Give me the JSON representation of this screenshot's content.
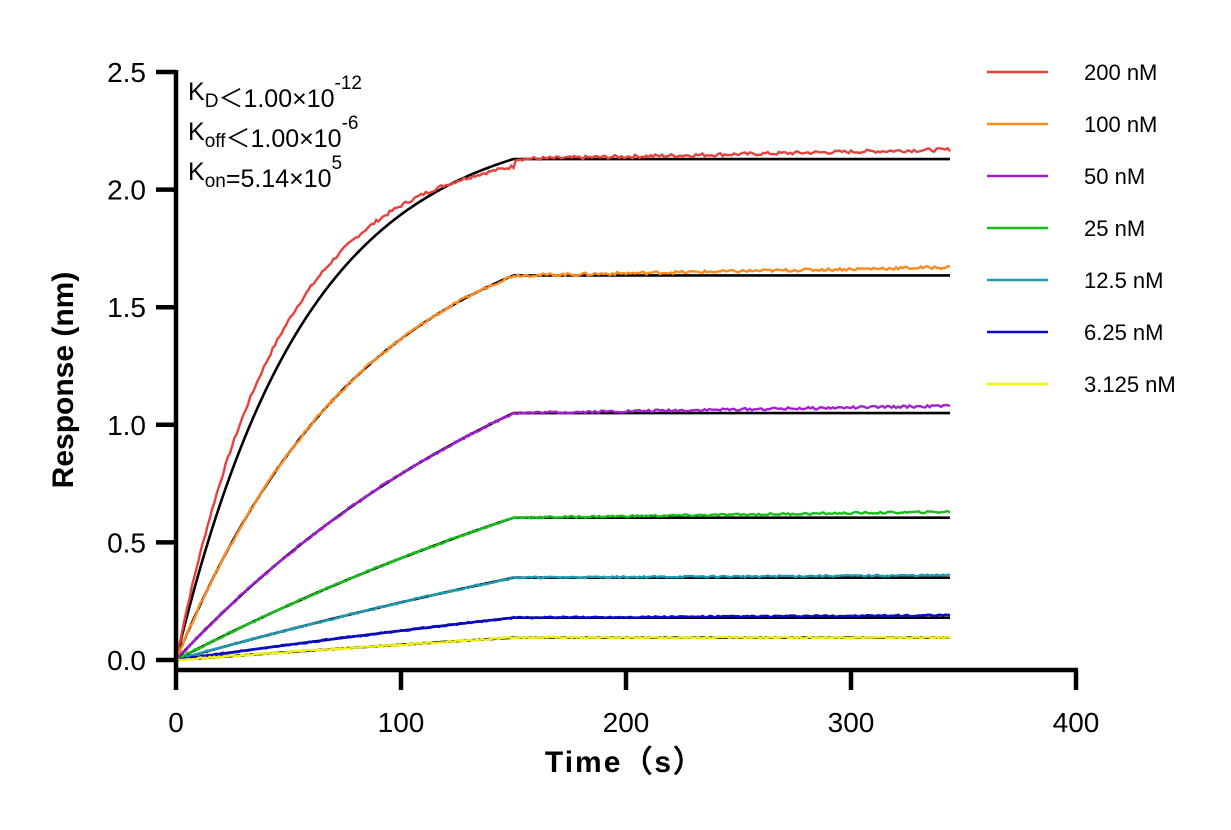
{
  "chart_data": {
    "type": "line",
    "xlabel": "Time（s）",
    "ylabel": "Response (nm)",
    "xlim": [
      0,
      400
    ],
    "ylim": [
      0,
      2.5
    ],
    "x_ticks": [
      0,
      100,
      200,
      300,
      400
    ],
    "y_ticks": [
      0.0,
      0.5,
      1.0,
      1.5,
      2.0,
      2.5
    ],
    "x_tick_labels": [
      "0",
      "100",
      "200",
      "300",
      "400"
    ],
    "y_tick_labels": [
      "0.0",
      "0.5",
      "1.0",
      "1.5",
      "2.0",
      "2.5"
    ],
    "grid": false,
    "legend_position": "right",
    "association_end": 150,
    "time_end": 344,
    "annotations": [
      {
        "symbol": "K",
        "sub": "D",
        "rel": "<",
        "value": "1.00×10",
        "exp": "-12"
      },
      {
        "symbol": "K",
        "sub": "off",
        "rel": "<",
        "value": "1.00×10",
        "exp": "-6"
      },
      {
        "symbol": "K",
        "sub": "on",
        "rel": "=",
        "value": "5.14×10",
        "exp": "5"
      }
    ],
    "series": [
      {
        "name": "200 nM",
        "color": "#e8413c",
        "plateau": 2.13,
        "end": 2.17,
        "k": 0.0173
      },
      {
        "name": "100 nM",
        "color": "#ff8a1e",
        "plateau": 1.635,
        "end": 1.67,
        "k": 0.0118
      },
      {
        "name": "50 nM",
        "color": "#a41fd1",
        "plateau": 1.05,
        "end": 1.08,
        "k": 0.0055
      },
      {
        "name": "25 nM",
        "color": "#16c01c",
        "plateau": 0.605,
        "end": 0.63,
        "k": 0.003
      },
      {
        "name": "12.5 nM",
        "color": "#1f9ab0",
        "plateau": 0.35,
        "end": 0.36,
        "k": 0.002
      },
      {
        "name": "6.25 nM",
        "color": "#0a0ad4",
        "plateau": 0.18,
        "end": 0.19,
        "k": 0.0015
      },
      {
        "name": "3.125 nM",
        "color": "#f2f20a",
        "plateau": 0.095,
        "end": 0.095,
        "k": 0.0012
      }
    ],
    "fit_color": "#000000"
  }
}
